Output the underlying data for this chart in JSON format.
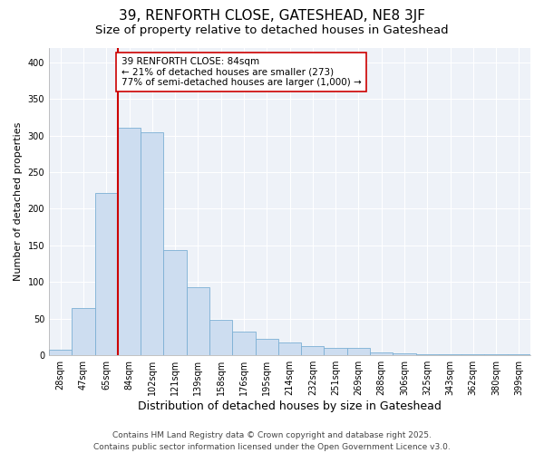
{
  "title": "39, RENFORTH CLOSE, GATESHEAD, NE8 3JF",
  "subtitle": "Size of property relative to detached houses in Gateshead",
  "xlabel": "Distribution of detached houses by size in Gateshead",
  "ylabel": "Number of detached properties",
  "bin_labels": [
    "28sqm",
    "47sqm",
    "65sqm",
    "84sqm",
    "102sqm",
    "121sqm",
    "139sqm",
    "158sqm",
    "176sqm",
    "195sqm",
    "214sqm",
    "232sqm",
    "251sqm",
    "269sqm",
    "288sqm",
    "306sqm",
    "325sqm",
    "343sqm",
    "362sqm",
    "380sqm",
    "399sqm"
  ],
  "bin_values": [
    8,
    65,
    222,
    311,
    305,
    144,
    93,
    48,
    32,
    22,
    17,
    13,
    10,
    10,
    4,
    3,
    2,
    2,
    1,
    1,
    1
  ],
  "bar_color": "#cdddf0",
  "bar_edge_color": "#7bafd4",
  "vline_x_index": 3,
  "vline_color": "#cc0000",
  "annotation_text": "39 RENFORTH CLOSE: 84sqm\n← 21% of detached houses are smaller (273)\n77% of semi-detached houses are larger (1,000) →",
  "annotation_box_color": "#ffffff",
  "annotation_box_edge": "#cc0000",
  "ylim": [
    0,
    420
  ],
  "yticks": [
    0,
    50,
    100,
    150,
    200,
    250,
    300,
    350,
    400
  ],
  "ax_background": "#eef2f8",
  "fig_background": "#ffffff",
  "grid_color": "#ffffff",
  "footer_text": "Contains HM Land Registry data © Crown copyright and database right 2025.\nContains public sector information licensed under the Open Government Licence v3.0.",
  "title_fontsize": 11,
  "subtitle_fontsize": 9.5,
  "xlabel_fontsize": 9,
  "ylabel_fontsize": 8,
  "tick_fontsize": 7,
  "footer_fontsize": 6.5,
  "annotation_fontsize": 7.5
}
